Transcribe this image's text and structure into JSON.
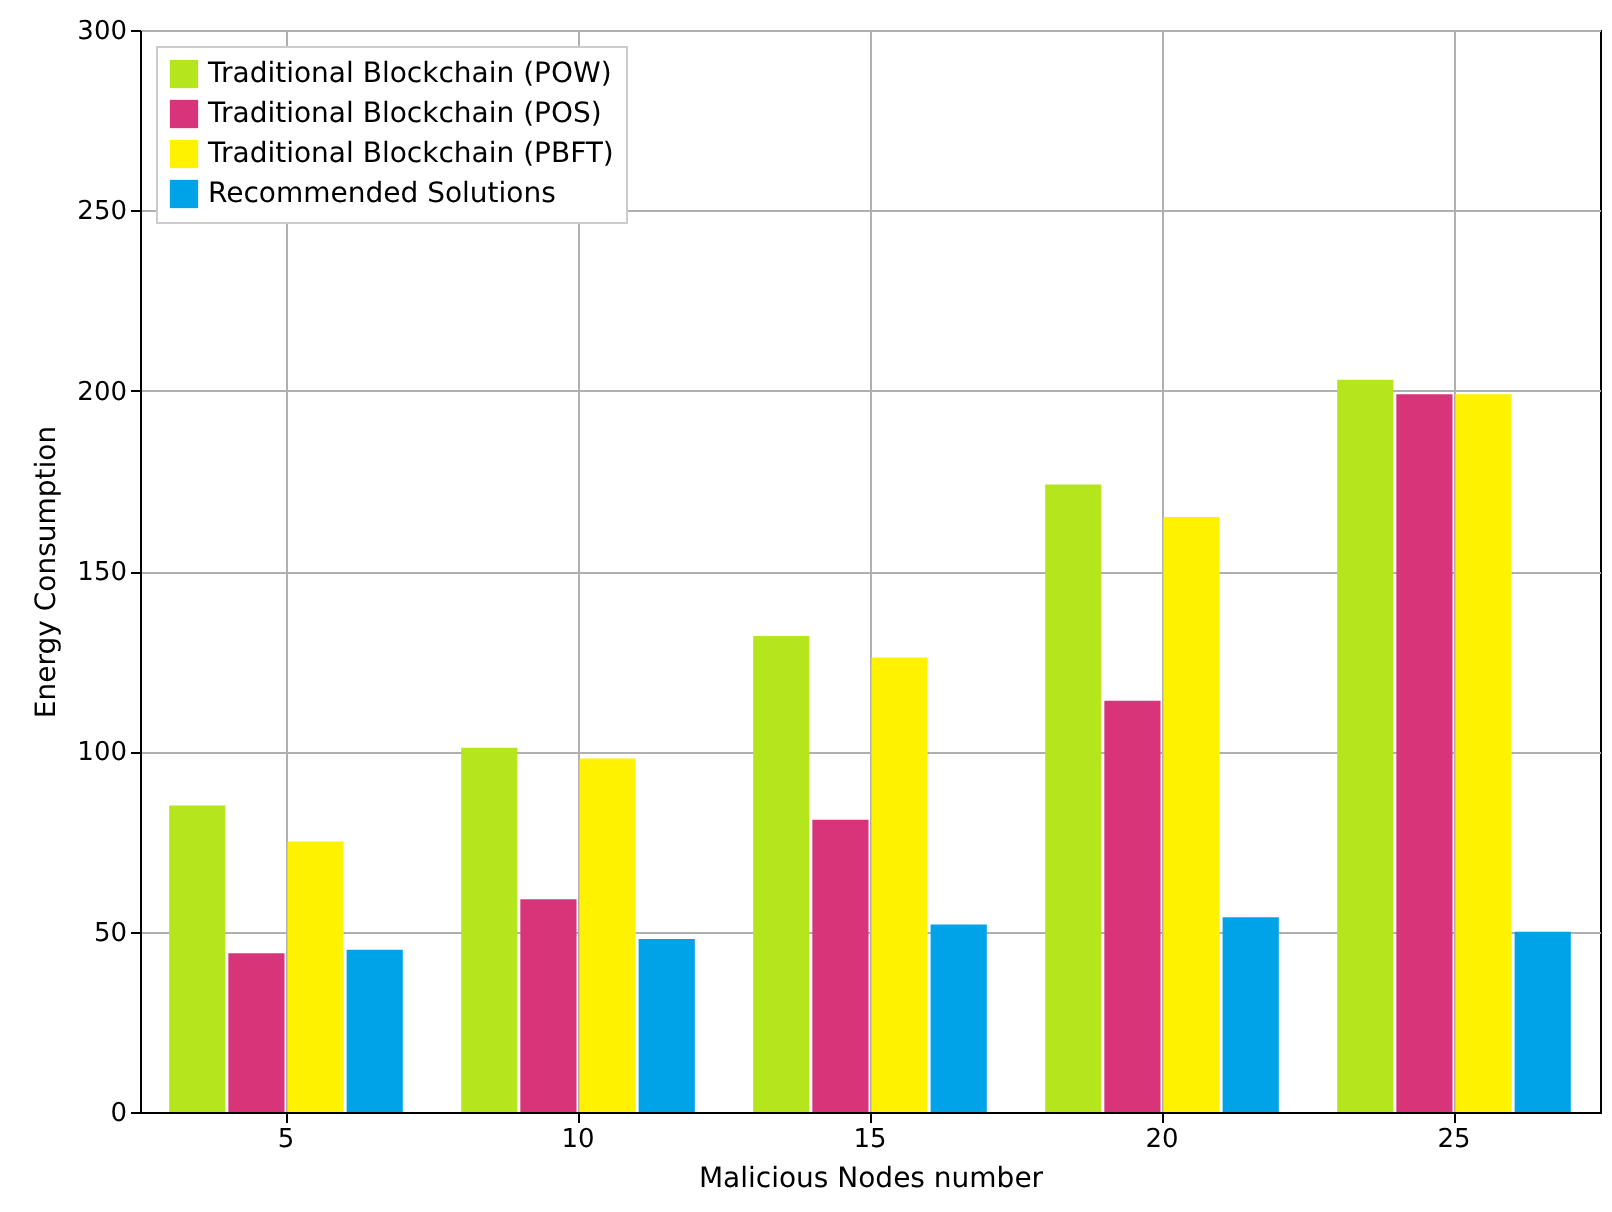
{
  "chart_data": {
    "type": "bar",
    "xlabel": "Malicious Nodes number",
    "ylabel": "Energy Consumption",
    "categories": [
      "5",
      "10",
      "15",
      "20",
      "25"
    ],
    "series": [
      {
        "name": "Traditional Blockchain (POW)",
        "color": "#b5e51d",
        "values": [
          85,
          101,
          132,
          174,
          203
        ]
      },
      {
        "name": "Traditional Blockchain (POS)",
        "color": "#d8347a",
        "values": [
          44,
          59,
          81,
          114,
          199
        ]
      },
      {
        "name": "Traditional Blockchain (PBFT)",
        "color": "#fff200",
        "values": [
          75,
          98,
          126,
          165,
          199
        ]
      },
      {
        "name": "Recommended Solutions",
        "color": "#00a2e8",
        "values": [
          45,
          48,
          52,
          54,
          50
        ]
      }
    ],
    "ylim": [
      0,
      300
    ],
    "yticks": [
      0,
      50,
      100,
      150,
      200,
      250,
      300
    ],
    "grid": true,
    "legend": "top left"
  }
}
